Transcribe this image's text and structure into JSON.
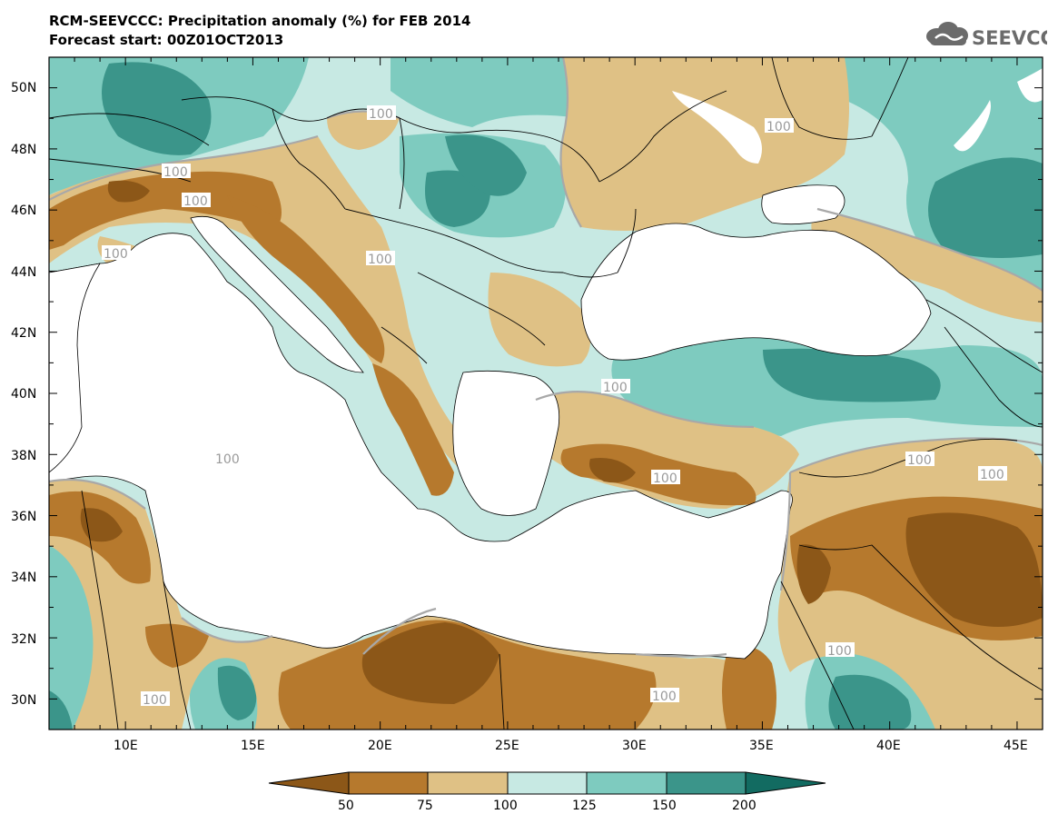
{
  "title": "RCM-SEEVCCC: Precipitation anomaly (%) for FEB 2014",
  "subtitle": "Forecast start: 00Z01OCT2013",
  "logo_text": "SEEVCCC",
  "axes": {
    "lat_labels": [
      "50N",
      "48N",
      "46N",
      "44N",
      "42N",
      "40N",
      "38N",
      "36N",
      "34N",
      "32N",
      "30N"
    ],
    "lon_labels": [
      "10E",
      "15E",
      "20E",
      "25E",
      "30E",
      "35E",
      "40E",
      "45E"
    ]
  },
  "contour_labels": [
    {
      "text": "100"
    },
    {
      "text": "100"
    },
    {
      "text": "100"
    },
    {
      "text": "100"
    },
    {
      "text": "100"
    },
    {
      "text": "100"
    },
    {
      "text": "100"
    },
    {
      "text": "100"
    },
    {
      "text": "100"
    },
    {
      "text": "100"
    },
    {
      "text": "100"
    },
    {
      "text": "100"
    },
    {
      "text": "100"
    },
    {
      "text": "100"
    }
  ],
  "legend": {
    "labels": [
      "50",
      "75",
      "100",
      "125",
      "150",
      "200"
    ],
    "colors": [
      "#8c5718",
      "#b6792d",
      "#dfc185",
      "#c7e9e3",
      "#7ecbbf",
      "#3b958a",
      "#126b61"
    ]
  },
  "chart_data": {
    "type": "heatmap",
    "title": "RCM-SEEVCCC: Precipitation anomaly (%) for FEB 2014",
    "subtitle": "Forecast start: 00Z01OCT2013",
    "lon_range": [
      7,
      46
    ],
    "lat_range": [
      29,
      51
    ],
    "levels": [
      50,
      75,
      100,
      125,
      150,
      200
    ],
    "colors": [
      "#8c5718",
      "#b6792d",
      "#dfc185",
      "#c7e9e3",
      "#7ecbbf",
      "#3b958a",
      "#126b61"
    ]
  }
}
